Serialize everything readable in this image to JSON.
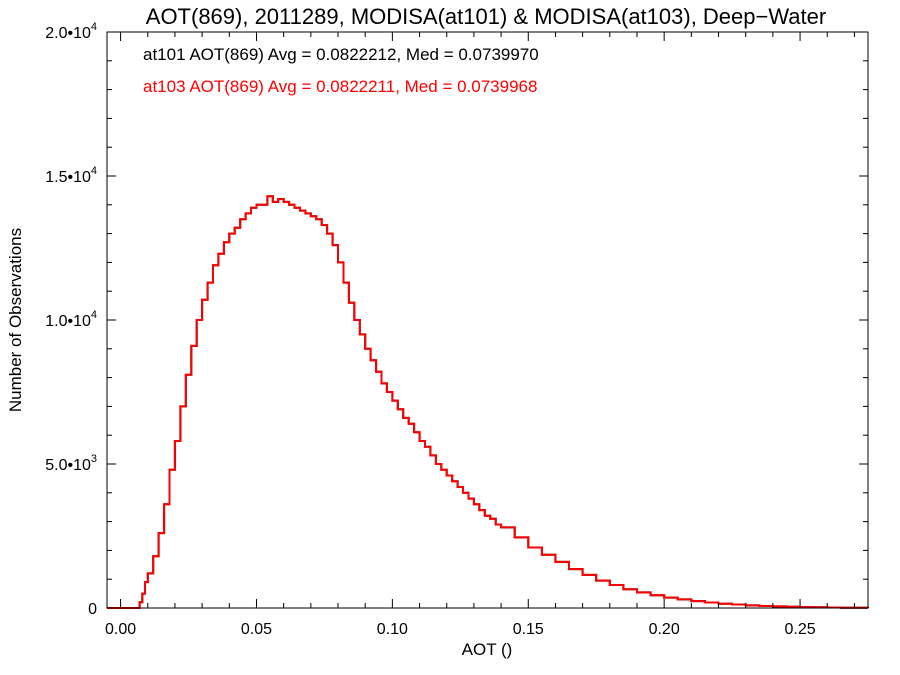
{
  "chart_data": {
    "type": "line",
    "title": "AOT(869), 2011289, MODISA(at101) & MODISA(at103), Deep−Water",
    "xlabel": "AOT ()",
    "ylabel": "Number of Observations",
    "xlim": [
      -0.005,
      0.275
    ],
    "ylim": [
      0,
      20000
    ],
    "grid": false,
    "x_ticks": [
      {
        "value": 0.0,
        "label": "0.00"
      },
      {
        "value": 0.05,
        "label": "0.05"
      },
      {
        "value": 0.1,
        "label": "0.10"
      },
      {
        "value": 0.15,
        "label": "0.15"
      },
      {
        "value": 0.2,
        "label": "0.20"
      },
      {
        "value": 0.25,
        "label": "0.25"
      }
    ],
    "y_ticks": [
      {
        "value": 0,
        "mantissa": "0",
        "exponent": ""
      },
      {
        "value": 5000,
        "mantissa": "5.0•10",
        "exponent": "3"
      },
      {
        "value": 10000,
        "mantissa": "1.0•10",
        "exponent": "4"
      },
      {
        "value": 15000,
        "mantissa": "1.5•10",
        "exponent": "4"
      },
      {
        "value": 20000,
        "mantissa": "2.0•10",
        "exponent": "4"
      }
    ],
    "annotations": [
      {
        "text": "at101 AOT(869) Avg = 0.0822212, Med = 0.0739970",
        "color": "#000000"
      },
      {
        "text": "at103 AOT(869) Avg = 0.0822211, Med = 0.0739968",
        "color": "#ff0000"
      }
    ],
    "series": [
      {
        "color": "#000000",
        "x": [
          -0.005,
          0.006,
          0.007,
          0.008,
          0.009,
          0.01,
          0.012,
          0.014,
          0.016,
          0.018,
          0.02,
          0.022,
          0.024,
          0.026,
          0.028,
          0.03,
          0.032,
          0.034,
          0.036,
          0.038,
          0.04,
          0.042,
          0.044,
          0.046,
          0.048,
          0.05,
          0.052,
          0.054,
          0.056,
          0.058,
          0.06,
          0.062,
          0.064,
          0.066,
          0.068,
          0.07,
          0.072,
          0.074,
          0.076,
          0.078,
          0.08,
          0.082,
          0.084,
          0.086,
          0.088,
          0.09,
          0.092,
          0.094,
          0.096,
          0.098,
          0.1,
          0.102,
          0.104,
          0.106,
          0.108,
          0.11,
          0.112,
          0.114,
          0.116,
          0.118,
          0.12,
          0.122,
          0.124,
          0.126,
          0.128,
          0.13,
          0.132,
          0.134,
          0.136,
          0.138,
          0.14,
          0.145,
          0.15,
          0.155,
          0.16,
          0.165,
          0.17,
          0.175,
          0.18,
          0.185,
          0.19,
          0.195,
          0.2,
          0.205,
          0.21,
          0.215,
          0.22,
          0.225,
          0.23,
          0.235,
          0.24,
          0.245,
          0.25,
          0.255,
          0.26,
          0.265,
          0.27,
          0.275
        ],
        "values": [
          0,
          0,
          200,
          500,
          900,
          1200,
          1800,
          2600,
          3600,
          4800,
          5800,
          7000,
          8100,
          9100,
          10000,
          10700,
          11300,
          11900,
          12300,
          12700,
          13000,
          13200,
          13500,
          13700,
          13900,
          14000,
          14000,
          14300,
          14100,
          14200,
          14100,
          14000,
          13900,
          13800,
          13700,
          13600,
          13500,
          13300,
          13000,
          12600,
          12000,
          11300,
          10600,
          10000,
          9500,
          9000,
          8600,
          8200,
          7800,
          7500,
          7200,
          6900,
          6600,
          6400,
          6100,
          5800,
          5600,
          5300,
          5000,
          4800,
          4600,
          4400,
          4200,
          4000,
          3800,
          3600,
          3400,
          3200,
          3100,
          2900,
          2800,
          2450,
          2100,
          1850,
          1600,
          1350,
          1150,
          950,
          800,
          650,
          540,
          440,
          360,
          300,
          240,
          190,
          150,
          120,
          90,
          70,
          55,
          42,
          32,
          24,
          17,
          12,
          7,
          4
        ]
      },
      {
        "color": "#ff0000",
        "x": [
          -0.005,
          0.006,
          0.007,
          0.008,
          0.009,
          0.01,
          0.012,
          0.014,
          0.016,
          0.018,
          0.02,
          0.022,
          0.024,
          0.026,
          0.028,
          0.03,
          0.032,
          0.034,
          0.036,
          0.038,
          0.04,
          0.042,
          0.044,
          0.046,
          0.048,
          0.05,
          0.052,
          0.054,
          0.056,
          0.058,
          0.06,
          0.062,
          0.064,
          0.066,
          0.068,
          0.07,
          0.072,
          0.074,
          0.076,
          0.078,
          0.08,
          0.082,
          0.084,
          0.086,
          0.088,
          0.09,
          0.092,
          0.094,
          0.096,
          0.098,
          0.1,
          0.102,
          0.104,
          0.106,
          0.108,
          0.11,
          0.112,
          0.114,
          0.116,
          0.118,
          0.12,
          0.122,
          0.124,
          0.126,
          0.128,
          0.13,
          0.132,
          0.134,
          0.136,
          0.138,
          0.14,
          0.145,
          0.15,
          0.155,
          0.16,
          0.165,
          0.17,
          0.175,
          0.18,
          0.185,
          0.19,
          0.195,
          0.2,
          0.205,
          0.21,
          0.215,
          0.22,
          0.225,
          0.23,
          0.235,
          0.24,
          0.245,
          0.25,
          0.255,
          0.26,
          0.265,
          0.27,
          0.275
        ],
        "values": [
          0,
          0,
          200,
          500,
          900,
          1200,
          1800,
          2600,
          3600,
          4800,
          5800,
          7000,
          8100,
          9100,
          10000,
          10700,
          11300,
          11900,
          12300,
          12700,
          13000,
          13200,
          13500,
          13700,
          13900,
          14000,
          14000,
          14300,
          14100,
          14200,
          14100,
          14000,
          13900,
          13800,
          13700,
          13600,
          13500,
          13300,
          13000,
          12600,
          12000,
          11300,
          10600,
          10000,
          9500,
          9000,
          8600,
          8200,
          7800,
          7500,
          7200,
          6900,
          6600,
          6400,
          6100,
          5800,
          5600,
          5300,
          5000,
          4800,
          4600,
          4400,
          4200,
          4000,
          3800,
          3600,
          3400,
          3200,
          3100,
          2900,
          2800,
          2450,
          2100,
          1850,
          1600,
          1350,
          1150,
          950,
          800,
          650,
          540,
          440,
          360,
          300,
          240,
          190,
          150,
          120,
          90,
          70,
          55,
          42,
          32,
          24,
          17,
          12,
          7,
          4
        ]
      }
    ]
  }
}
